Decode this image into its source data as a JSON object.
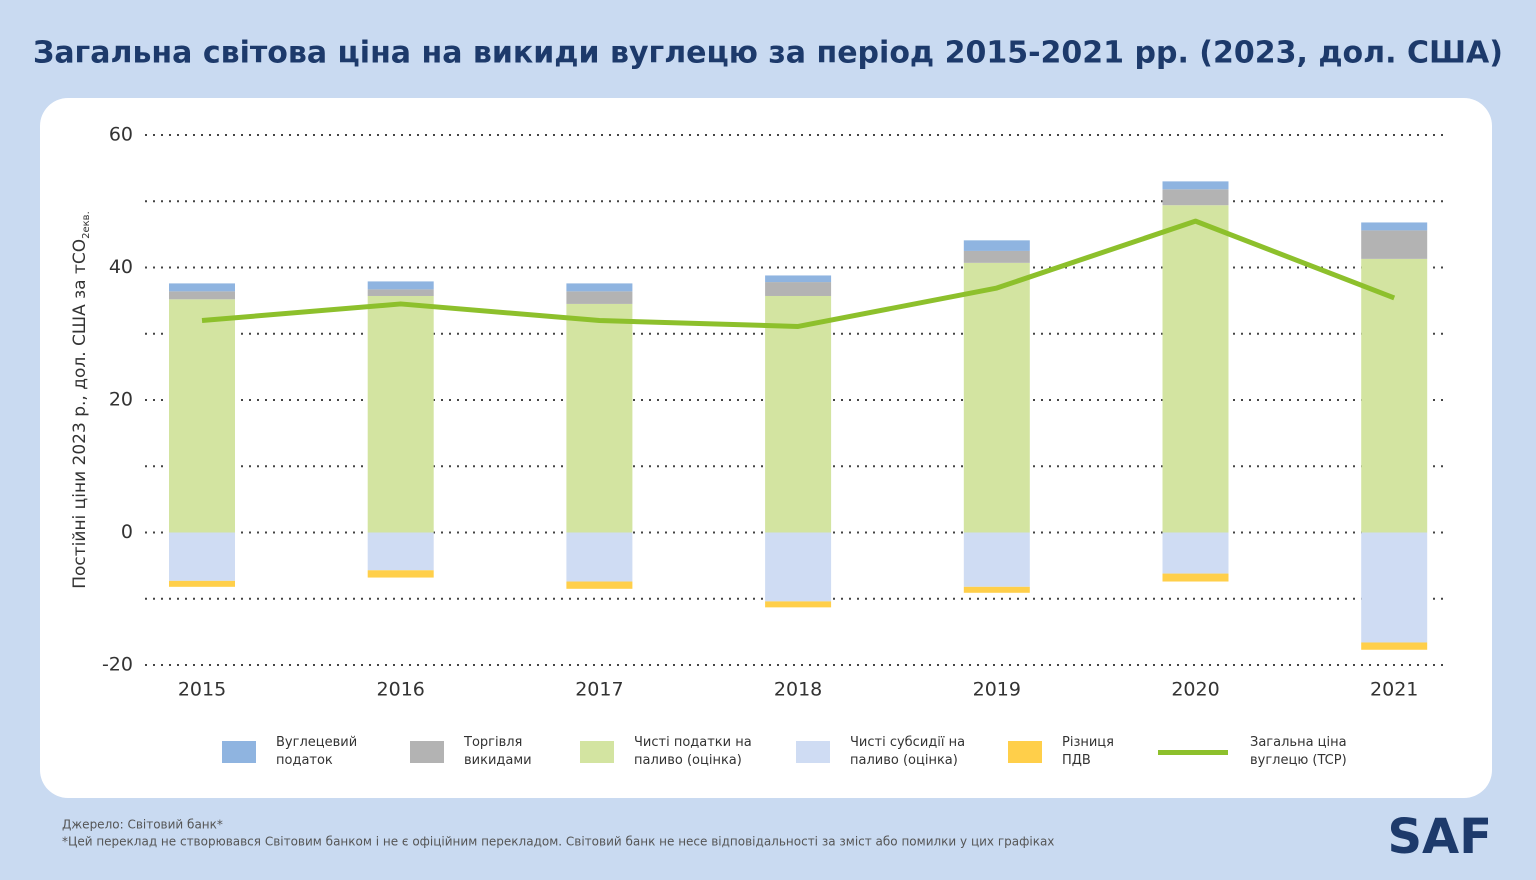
{
  "chart_data": {
    "type": "bar",
    "stacked": true,
    "title": "Загальна світова ціна на викиди вуглецю за період 2015-2021 рр. (2023, дол. США)",
    "y_label": "Постійні ціни 2023 р., дол. США за тCO",
    "y_label_sub": "2екв.",
    "categories": [
      "2015",
      "2016",
      "2017",
      "2018",
      "2019",
      "2020",
      "2021"
    ],
    "series": [
      {
        "name": "Вуглецевий податок",
        "color": "#8fb4e0",
        "values": [
          1.2,
          1.2,
          1.2,
          1.0,
          1.6,
          1.2,
          1.2
        ]
      },
      {
        "name": "Торгівля викидами",
        "color": "#b3b3b3",
        "values": [
          1.2,
          1.0,
          1.9,
          2.1,
          1.8,
          2.4,
          4.3
        ]
      },
      {
        "name": "Чисті податки на паливо (оцінка)",
        "color": "#d3e4a1",
        "values": [
          35.2,
          35.7,
          34.5,
          35.7,
          40.7,
          49.4,
          41.3
        ]
      },
      {
        "name": "Чисті субсидії на паливо (оцінка)",
        "color": "#cfdcf3",
        "values": [
          -7.3,
          -5.7,
          -7.4,
          -10.4,
          -8.2,
          -6.2,
          -16.6
        ]
      },
      {
        "name": "Різниця ПДВ",
        "color": "#ffcf4a",
        "values": [
          -0.9,
          -1.1,
          -1.1,
          -0.9,
          -0.9,
          -1.2,
          -1.1
        ]
      },
      {
        "name": "Загальна ціна вуглецю (TCP)",
        "type": "line",
        "color": "#8dc02c",
        "values": [
          32.0,
          34.5,
          32.0,
          31.1,
          36.9,
          47.0,
          35.4
        ]
      }
    ],
    "ylim": [
      -20,
      60
    ],
    "yticks": [
      -20,
      0,
      20,
      40,
      60
    ],
    "minor_yticks": [
      -10,
      10,
      30,
      50
    ],
    "grid": true
  },
  "footer": {
    "source": "Джерело: Світовий банк*",
    "note": "*Цей переклад не створювався Світовим банком і не є офіційним перекладом. Світовий банк не несе відповідальності за зміст або помилки у цих графіках"
  },
  "logo": "SAF"
}
